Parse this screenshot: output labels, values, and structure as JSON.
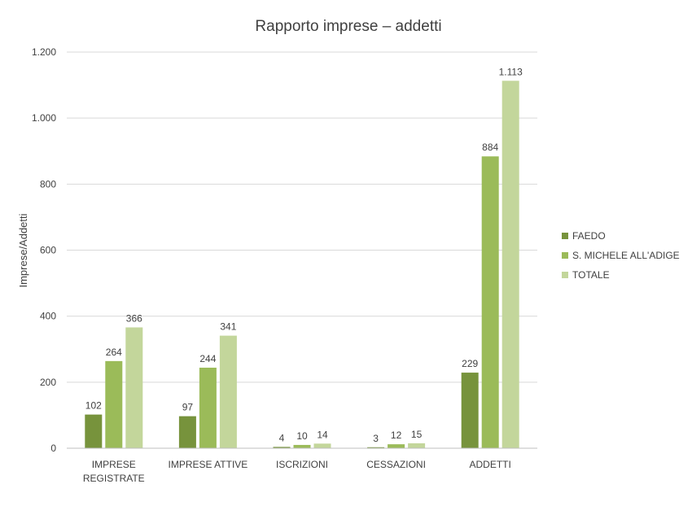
{
  "chart_data": {
    "type": "bar",
    "title": "Rapporto imprese – addetti",
    "xlabel": "",
    "ylabel": "Imprese/Addetti",
    "ylim": [
      0,
      1200
    ],
    "yticks": [
      0,
      200,
      400,
      600,
      800,
      1000,
      1200
    ],
    "ytick_labels": [
      "0",
      "200",
      "400",
      "600",
      "800",
      "1.000",
      "1.200"
    ],
    "grid": true,
    "legend_position": "right",
    "categories": [
      [
        "IMPRESE",
        "REGISTRATE"
      ],
      [
        "IMPRESE ATTIVE"
      ],
      [
        "ISCRIZIONI"
      ],
      [
        "CESSAZIONI"
      ],
      [
        "ADDETTI"
      ]
    ],
    "series": [
      {
        "name": "FAEDO",
        "color": "#77933c",
        "values": [
          102,
          97,
          4,
          3,
          229
        ],
        "labels": [
          "102",
          "97",
          "4",
          "3",
          "229"
        ]
      },
      {
        "name": "S. MICHELE ALL'ADIGE",
        "color": "#9bbb59",
        "values": [
          264,
          244,
          10,
          12,
          884
        ],
        "labels": [
          "264",
          "244",
          "10",
          "12",
          "884"
        ]
      },
      {
        "name": "TOTALE",
        "color": "#c3d69b",
        "values": [
          366,
          341,
          14,
          15,
          1113
        ],
        "labels": [
          "366",
          "341",
          "14",
          "15",
          "1.113"
        ]
      }
    ]
  }
}
